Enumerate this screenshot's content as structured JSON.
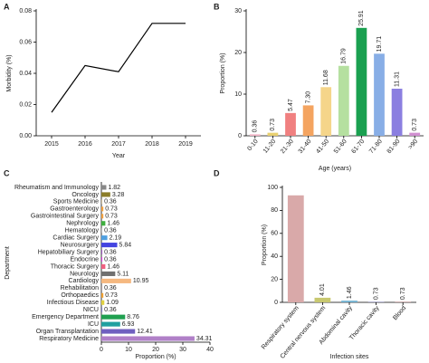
{
  "chart_data": [
    {
      "type": "line",
      "label": "A",
      "xlabel": "Year",
      "ylabel": "Morbidity (%)",
      "categories": [
        "2015",
        "2016",
        "2017",
        "2018",
        "2019"
      ],
      "values": [
        0.015,
        0.045,
        0.041,
        0.072,
        0.072
      ],
      "color": "#000000",
      "ylim": [
        0,
        0.08
      ],
      "yticks": [
        {
          "value": 0,
          "label": "0.00"
        },
        {
          "value": 0.02,
          "label": "0.02"
        },
        {
          "value": 0.04,
          "label": "0.04"
        },
        {
          "value": 0.06,
          "label": "0.06"
        },
        {
          "value": 0.08,
          "label": "0.08"
        }
      ]
    },
    {
      "type": "bar",
      "label": "B",
      "xlabel": "Age (years)",
      "ylabel": "Proportion (%)",
      "categories": [
        "0-10",
        "11-20",
        "21-30",
        "31-40",
        "41-50",
        "51-60",
        "61-70",
        "71-80",
        "81-90",
        ">90"
      ],
      "values": [
        0.36,
        0.73,
        5.47,
        7.3,
        11.68,
        16.79,
        25.91,
        19.71,
        11.31,
        0.73
      ],
      "value_labels": [
        "0.36",
        "0.73",
        "5.47",
        "7.30",
        "11.68",
        "16.79",
        "25.91",
        "19.71",
        "11.31",
        "0.73"
      ],
      "colors": [
        "#f4b6c8",
        "#e8d070",
        "#f08080",
        "#f4a460",
        "#f5d58a",
        "#b5e0a0",
        "#1aa050",
        "#88aee6",
        "#8b7fe0",
        "#d08fd0"
      ],
      "ylim": [
        0,
        30
      ],
      "yticks": [
        0,
        10,
        20,
        30
      ]
    },
    {
      "type": "barh",
      "label": "C",
      "xlabel": "Proportion (%)",
      "ylabel": "Department",
      "categories": [
        "Rheumatism and Immunology",
        "Oncology",
        "Sports Medicine",
        "Gastroenterology",
        "Gastrointestinal Surgery",
        "Nephrology",
        "Hematology",
        "Cardiac Surgery",
        "Neurosurgery",
        "Hepatobiliary Surgery",
        "Endocrine",
        "Thoracic Surgery",
        "Neurology",
        "Cardiology",
        "Rehabilitation",
        "Orthopaedics",
        "Infectious Disease",
        "NICU",
        "Emergency Department",
        "ICU",
        "Organ Transplantation",
        "Respiratory Medicine"
      ],
      "values": [
        1.82,
        3.28,
        0.36,
        0.73,
        0.73,
        1.46,
        0.36,
        2.19,
        5.84,
        0.36,
        0.36,
        1.46,
        5.11,
        10.95,
        0.36,
        0.73,
        1.09,
        0.36,
        8.76,
        6.93,
        12.41,
        34.31
      ],
      "colors": [
        "#888888",
        "#8b7d2a",
        "#d0c0a0",
        "#f0a040",
        "#f0a040",
        "#40b040",
        "#c0c0c0",
        "#50a0e0",
        "#4444e0",
        "#a060c0",
        "#e040e0",
        "#f06080",
        "#707070",
        "#f5b880",
        "#b0a0a0",
        "#f0a030",
        "#e0d040",
        "#8080c0",
        "#20a050",
        "#20a0a0",
        "#7060c0",
        "#b080c8"
      ],
      "xlim": [
        0,
        40
      ],
      "xticks": [
        0,
        10,
        20,
        30,
        40
      ]
    },
    {
      "type": "bar",
      "label": "D",
      "xlabel": "Infection sites",
      "ylabel": "Proportion (%)",
      "categories": [
        "Respiratory system",
        "Central nervous system",
        "Abdominal cavity",
        "Thoracic cavity",
        "Blood"
      ],
      "values": [
        93.07,
        4.01,
        1.46,
        0.73,
        0.73
      ],
      "value_labels": [
        null,
        "4.01",
        "1.46",
        "0.73",
        "0.73"
      ],
      "colors": [
        "#d9a9a9",
        "#c8c870",
        "#70b0d0",
        "#b0b0d0",
        "#d0b0b0"
      ],
      "ylim": [
        0,
        100
      ],
      "yticks": [
        0,
        20,
        40,
        60,
        80,
        100
      ]
    }
  ]
}
